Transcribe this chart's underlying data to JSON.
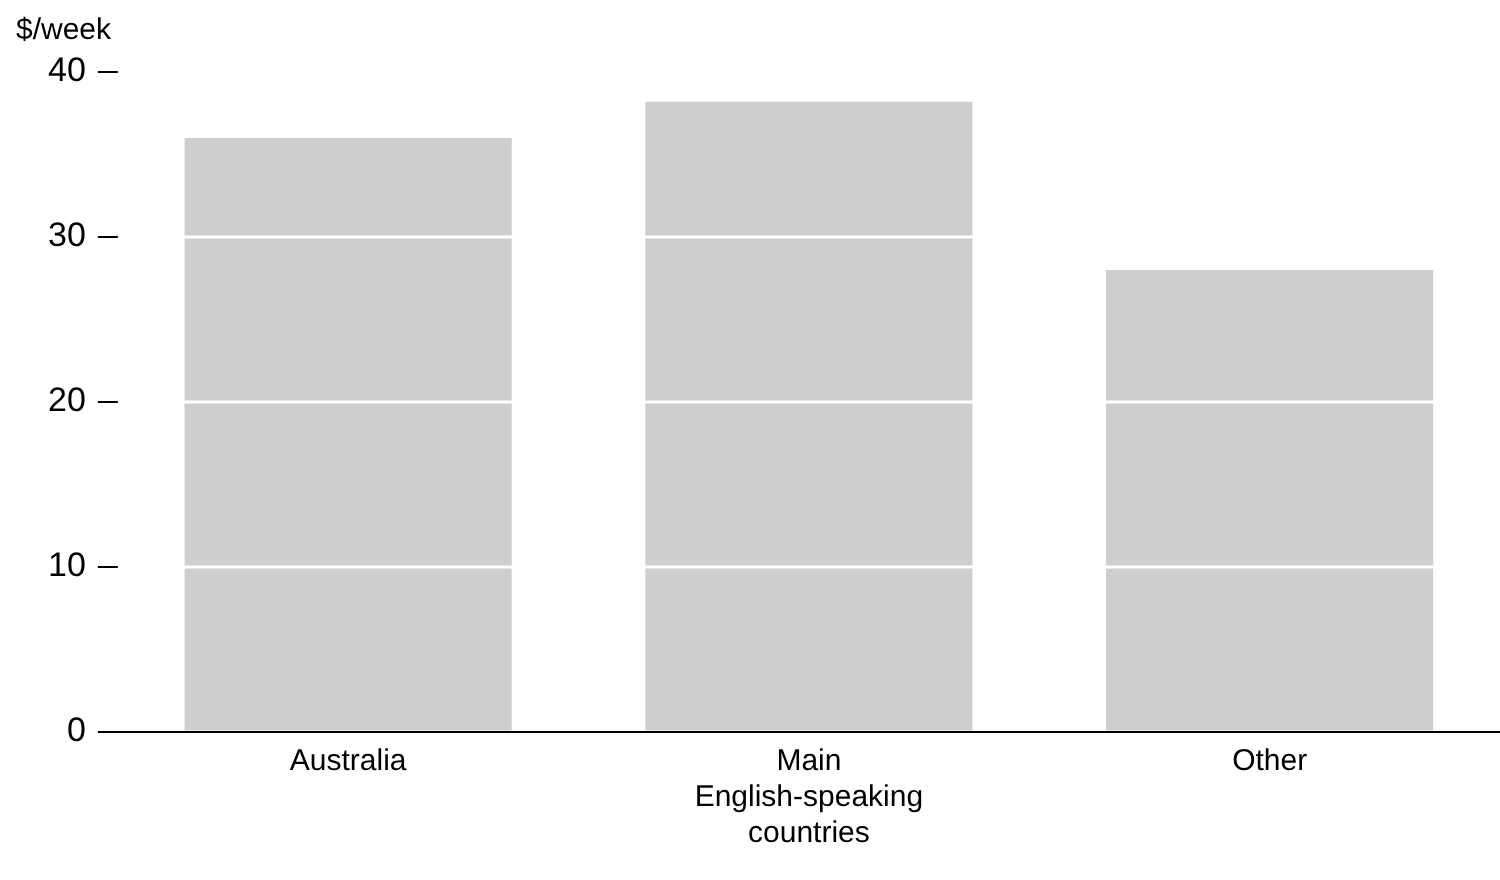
{
  "chart_data": {
    "type": "bar",
    "ylabel": "$/week",
    "categories": [
      "Australia",
      "Main English-speaking countries",
      "Other"
    ],
    "values": [
      36,
      38.2,
      28
    ],
    "color": "#d0cecd",
    "ylim": [
      0,
      40
    ],
    "yticks": [
      0,
      10,
      20,
      30,
      40
    ],
    "grid": "y"
  }
}
